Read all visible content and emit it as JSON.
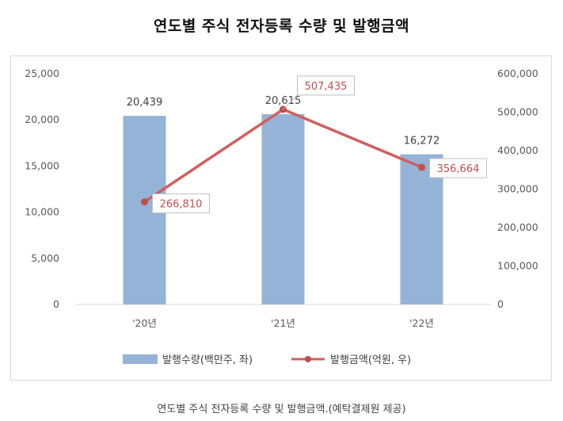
{
  "title": "연도별 주식 전자등록 수량 및 발행금액",
  "caption": "연도별 주식 전자등록 수량 및 발행금액.(예탁결제원 제공)",
  "chart_data": {
    "type": "bar",
    "title": "연도별 주식 전자등록 수량 및 발행금액",
    "categories": [
      "'20년",
      "'21년",
      "'22년"
    ],
    "series": [
      {
        "name": "발행수량(백만주, 좌)",
        "type": "bar",
        "axis": "left",
        "color": "#95b3d7",
        "values": [
          20439,
          20615,
          16272
        ],
        "labels": [
          "20,439",
          "20,615",
          "16,272"
        ]
      },
      {
        "name": "발행금액(억원, 우)",
        "type": "line",
        "axis": "right",
        "color": "#d06060",
        "values": [
          266810,
          507435,
          356664
        ],
        "labels": [
          "266,810",
          "507,435",
          "356,664"
        ]
      }
    ],
    "ylim_left": [
      0,
      25000
    ],
    "ylim_right": [
      0,
      600000
    ],
    "yticks_left": [
      "0",
      "5,000",
      "10,000",
      "15,000",
      "20,000",
      "25,000"
    ],
    "yticks_right": [
      "0",
      "100,000",
      "200,000",
      "300,000",
      "400,000",
      "500,000",
      "600,000"
    ],
    "grid": false,
    "legend_position": "bottom"
  }
}
